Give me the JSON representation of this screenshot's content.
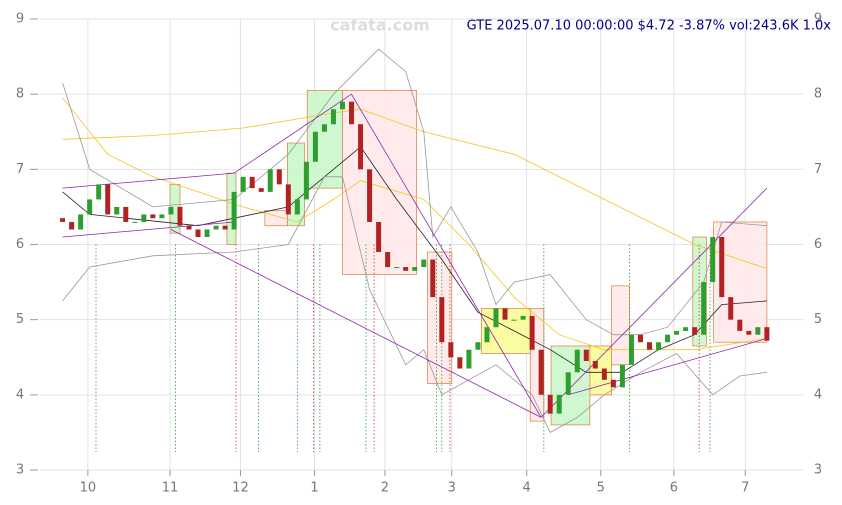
{
  "chart_data": {
    "type": "candlestick",
    "title": "GTE 2025.07.10 00:00:00 $4.72 -3.87% vol:243.6K 1.0x",
    "watermark": "cafata.com",
    "up_color": "#2e9e2e",
    "down_color": "#b22222",
    "grid": true,
    "xlim": [
      -2.5,
      82
    ],
    "ylim": [
      3,
      9
    ],
    "yticks": [
      3,
      4,
      5,
      6,
      7,
      8,
      9
    ],
    "xticks": [
      {
        "value": 2.8,
        "label": "10"
      },
      {
        "value": 11.9,
        "label": "11"
      },
      {
        "value": 19.7,
        "label": "12"
      },
      {
        "value": 27.9,
        "label": "1"
      },
      {
        "value": 35.7,
        "label": "2"
      },
      {
        "value": 43.1,
        "label": "3"
      },
      {
        "value": 51.4,
        "label": "4"
      },
      {
        "value": 59.6,
        "label": "5"
      },
      {
        "value": 67.7,
        "label": "6"
      },
      {
        "value": 75.6,
        "label": "7"
      }
    ],
    "x": [
      0,
      1,
      2,
      3,
      4,
      5,
      6,
      7,
      8,
      9,
      10,
      11,
      12,
      13,
      14,
      15,
      16,
      17,
      18,
      19,
      20,
      21,
      22,
      23,
      24,
      25,
      26,
      27,
      28,
      29,
      30,
      31,
      32,
      33,
      34,
      35,
      36,
      37,
      38,
      39,
      40,
      41,
      42,
      43,
      44,
      45,
      46,
      47,
      48,
      49,
      50,
      51,
      52,
      53,
      54,
      55,
      56,
      57,
      58,
      59,
      60,
      61,
      62,
      63,
      64,
      65,
      66,
      67,
      68,
      69,
      70,
      71,
      72,
      73,
      74,
      75,
      76,
      77,
      78
    ],
    "open": [
      6.35,
      6.3,
      6.2,
      6.4,
      6.6,
      6.8,
      6.4,
      6.5,
      6.3,
      6.3,
      6.4,
      6.35,
      6.4,
      6.5,
      6.25,
      6.2,
      6.1,
      6.2,
      6.25,
      6.2,
      6.7,
      6.9,
      6.75,
      6.7,
      7.0,
      6.8,
      6.4,
      6.6,
      7.1,
      7.5,
      7.6,
      7.8,
      7.9,
      7.6,
      7.0,
      6.3,
      5.9,
      5.7,
      5.7,
      5.65,
      5.7,
      5.8,
      5.3,
      4.7,
      4.5,
      4.35,
      4.6,
      4.7,
      4.9,
      5.15,
      5.0,
      5.0,
      5.05,
      4.6,
      4.0,
      3.75,
      4.0,
      4.3,
      4.6,
      4.45,
      4.35,
      4.2,
      4.1,
      4.4,
      4.8,
      4.7,
      4.6,
      4.7,
      4.8,
      4.85,
      4.9,
      4.8,
      5.5,
      6.1,
      5.3,
      5.0,
      4.85,
      4.8,
      4.9
    ],
    "close": [
      6.3,
      6.2,
      6.4,
      6.6,
      6.8,
      6.4,
      6.5,
      6.3,
      6.3,
      6.4,
      6.35,
      6.4,
      6.5,
      6.25,
      6.2,
      6.1,
      6.2,
      6.25,
      6.2,
      6.7,
      6.9,
      6.75,
      6.7,
      7.0,
      6.8,
      6.4,
      6.6,
      7.1,
      7.5,
      7.6,
      7.8,
      7.9,
      7.6,
      7.0,
      6.3,
      5.9,
      5.7,
      5.7,
      5.65,
      5.7,
      5.8,
      5.3,
      4.7,
      4.5,
      4.35,
      4.6,
      4.7,
      4.9,
      5.15,
      5.0,
      5.0,
      5.05,
      4.6,
      4.0,
      3.75,
      4.0,
      4.3,
      4.6,
      4.45,
      4.35,
      4.2,
      4.1,
      4.4,
      4.8,
      4.7,
      4.6,
      4.7,
      4.8,
      4.85,
      4.9,
      4.8,
      5.5,
      6.1,
      5.3,
      5.0,
      4.85,
      4.8,
      4.9,
      4.72
    ],
    "indicators": [
      {
        "color": "#f5c518",
        "x": [
          0,
          10,
          20,
          30,
          33,
          40,
          50,
          60,
          70,
          78
        ],
        "values": [
          7.4,
          7.45,
          7.55,
          7.75,
          7.8,
          7.5,
          7.2,
          6.6,
          6.0,
          5.68
        ]
      },
      {
        "color": "#f5c518",
        "x": [
          0,
          5,
          10,
          20,
          26,
          30,
          33,
          40,
          45,
          50,
          55,
          60,
          65,
          70,
          78
        ],
        "values": [
          7.95,
          7.2,
          6.9,
          6.5,
          6.3,
          6.6,
          6.85,
          6.6,
          6.0,
          5.3,
          4.8,
          4.6,
          4.6,
          4.6,
          4.75
        ]
      },
      {
        "color": "#222222",
        "x": [
          0,
          3,
          15,
          25,
          30,
          33,
          37,
          42,
          46,
          50,
          54,
          58,
          62,
          66,
          70,
          73,
          78
        ],
        "values": [
          6.7,
          6.4,
          6.25,
          6.5,
          7.0,
          7.3,
          6.6,
          5.8,
          5.1,
          4.85,
          4.6,
          4.3,
          4.3,
          4.6,
          4.8,
          5.2,
          5.25
        ]
      },
      {
        "color": "#999999",
        "x": [
          0,
          3,
          10,
          19,
          25,
          30,
          35,
          38,
          40,
          41,
          43,
          46,
          48,
          50,
          54,
          58,
          61,
          64,
          67,
          71,
          73,
          78
        ],
        "values": [
          8.15,
          7.0,
          6.5,
          6.6,
          7.2,
          8.0,
          8.6,
          8.3,
          7.5,
          6.1,
          6.5,
          5.9,
          5.2,
          5.5,
          5.6,
          5.0,
          4.8,
          4.8,
          4.9,
          5.5,
          6.3,
          6.25
        ]
      },
      {
        "color": "#999999",
        "x": [
          0,
          3,
          10,
          19,
          25,
          29,
          31,
          34,
          38,
          40,
          42,
          45,
          48,
          52,
          54,
          57,
          60,
          64,
          68,
          72,
          75,
          78
        ],
        "values": [
          5.25,
          5.7,
          5.85,
          5.9,
          6.0,
          6.9,
          6.9,
          5.4,
          4.4,
          4.6,
          4.0,
          4.2,
          4.4,
          4.0,
          3.5,
          3.7,
          4.0,
          4.3,
          4.55,
          4.0,
          4.25,
          4.3
        ]
      }
    ],
    "trend_lines": [
      {
        "color": "#8e24aa",
        "x": [
          0,
          19
        ],
        "values": [
          6.75,
          6.95
        ]
      },
      {
        "color": "#8e24aa",
        "x": [
          19,
          32
        ],
        "values": [
          6.95,
          8.0
        ]
      },
      {
        "color": "#8e24aa",
        "x": [
          0,
          19
        ],
        "values": [
          6.1,
          6.3
        ]
      },
      {
        "color": "#8e24aa",
        "x": [
          12,
          53
        ],
        "values": [
          6.2,
          3.7
        ]
      },
      {
        "color": "#8e24aa",
        "x": [
          32,
          53
        ],
        "values": [
          8.0,
          3.7
        ]
      },
      {
        "color": "#8e24aa",
        "x": [
          53,
          78
        ],
        "values": [
          3.7,
          6.75
        ]
      },
      {
        "color": "#8e24aa",
        "x": [
          56,
          78
        ],
        "values": [
          4.0,
          4.75
        ]
      }
    ],
    "boxes": [
      {
        "fill": "#c8f7c8",
        "x": [
          11.9,
          13
        ],
        "y": [
          6.15,
          6.8
        ]
      },
      {
        "fill": "#c8f7c8",
        "x": [
          18.2,
          19.2
        ],
        "y": [
          6.0,
          6.95
        ]
      },
      {
        "fill": "#ffe8e8",
        "x": [
          22.4,
          24.9
        ],
        "y": [
          6.25,
          6.45
        ]
      },
      {
        "fill": "#c8f7c8",
        "x": [
          24.9,
          26.8
        ],
        "y": [
          6.25,
          7.35
        ]
      },
      {
        "fill": "#c8f7c8",
        "x": [
          27.1,
          31
        ],
        "y": [
          6.75,
          8.05
        ]
      },
      {
        "fill": "#ffe8e8",
        "x": [
          31,
          39.2
        ],
        "y": [
          5.6,
          8.05
        ]
      },
      {
        "fill": "#ffe8e8",
        "x": [
          40.4,
          43.1
        ],
        "y": [
          4.15,
          5.9
        ]
      },
      {
        "fill": "#fafa90",
        "x": [
          46.4,
          51.9
        ],
        "y": [
          4.55,
          5.15
        ]
      },
      {
        "fill": "#ffe8e8",
        "x": [
          51.8,
          53.3
        ],
        "y": [
          3.65,
          5.15
        ]
      },
      {
        "fill": "#c8f7c8",
        "x": [
          54.1,
          58.4
        ],
        "y": [
          3.6,
          4.65
        ]
      },
      {
        "fill": "#fafa90",
        "x": [
          58.4,
          60.8
        ],
        "y": [
          4.0,
          4.65
        ]
      },
      {
        "fill": "#ffe8e8",
        "x": [
          60.8,
          62.8
        ],
        "y": [
          4.4,
          5.45
        ]
      },
      {
        "fill": "#c8f7c8",
        "x": [
          69.8,
          71.3
        ],
        "y": [
          4.65,
          6.1
        ]
      },
      {
        "fill": "#ffe8e8",
        "x": [
          72.1,
          78
        ],
        "y": [
          4.7,
          6.3
        ]
      }
    ],
    "signals": [
      3.7,
      12.5,
      19.2,
      21.7,
      26,
      27.8,
      28.5,
      33.6,
      34.5,
      41.4,
      42,
      42.9,
      53.3,
      62.8,
      70.5,
      71.7
    ]
  }
}
